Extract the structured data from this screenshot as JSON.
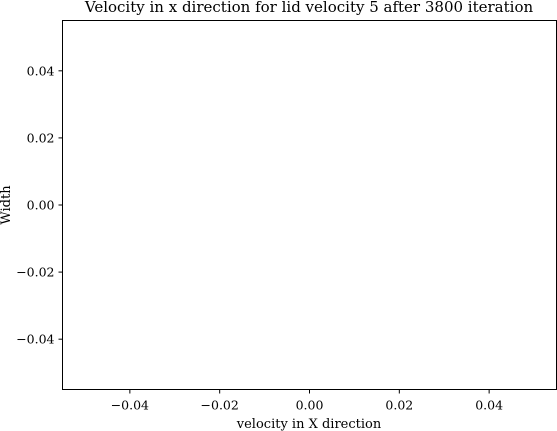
{
  "chart_data": {
    "type": "line",
    "title": "Velocity in x direction for lid velocity 5 after 3800 iteration",
    "xlabel": "velocity in X direction",
    "ylabel": "Width",
    "xlim": [
      -0.055,
      0.055
    ],
    "ylim": [
      -0.055,
      0.055
    ],
    "x_ticks": [
      -0.04,
      -0.02,
      0.0,
      0.02,
      0.04
    ],
    "x_tick_labels": [
      "−0.04",
      "−0.02",
      "0.00",
      "0.02",
      "0.04"
    ],
    "y_ticks": [
      0.04,
      0.02,
      0.0,
      -0.02,
      -0.04
    ],
    "y_tick_labels": [
      "0.04",
      "0.02",
      "0.00",
      "−0.02",
      "−0.04"
    ],
    "grid": false,
    "series": []
  }
}
